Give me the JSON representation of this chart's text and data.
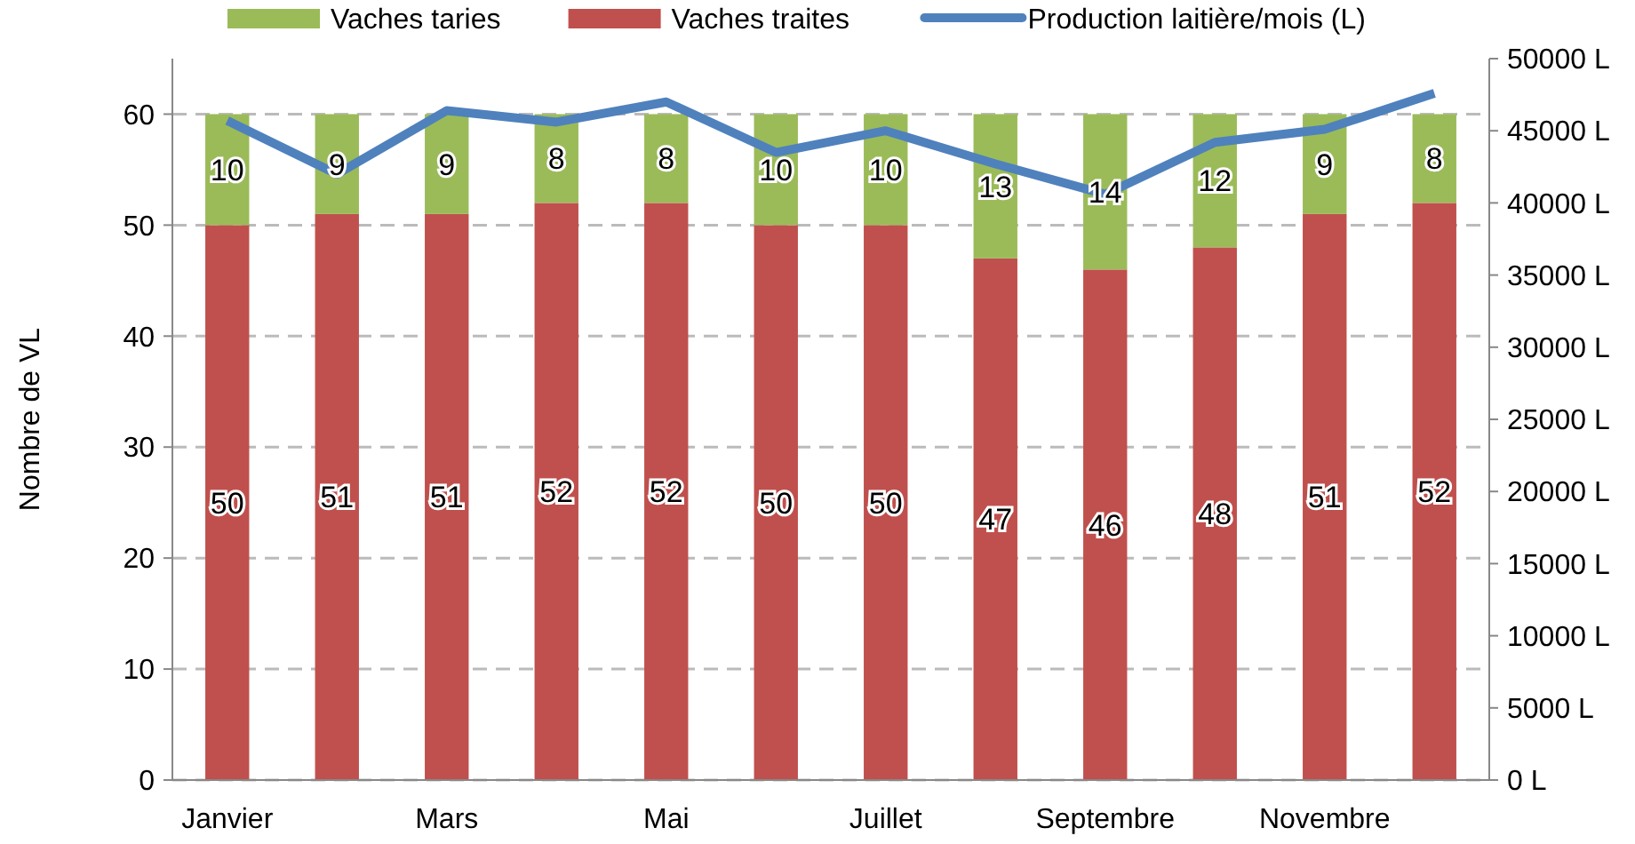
{
  "chart_data": {
    "type": "bar",
    "stacked": true,
    "ylabel": "Nombre de VL",
    "categories": [
      "Janvier",
      null,
      "Mars",
      null,
      "Mai",
      null,
      "Juillet",
      null,
      "Septembre",
      null,
      "Novembre",
      null
    ],
    "series": [
      {
        "name": "Vaches traites",
        "color": "#c0504d",
        "values": [
          50,
          51,
          51,
          52,
          52,
          50,
          50,
          47,
          46,
          48,
          51,
          52
        ],
        "value_labels": [
          "50",
          "51",
          "51",
          "52",
          "52",
          "50",
          "50",
          "47",
          "46",
          "48",
          "51",
          "52"
        ]
      },
      {
        "name": "Vaches taries",
        "color": "#9bbb59",
        "values": [
          10,
          9,
          9,
          8,
          8,
          10,
          10,
          13,
          14,
          12,
          9,
          8
        ],
        "value_labels": [
          "10",
          "9",
          "9",
          "8",
          "8",
          "10",
          "10",
          "13",
          "14",
          "12",
          "9",
          "8"
        ]
      },
      {
        "name": "Production laitière/mois (L)",
        "type": "line",
        "axis": "y2",
        "color": "#4f81bd",
        "values": [
          45700,
          42000,
          46400,
          45600,
          47000,
          43500,
          45000,
          42700,
          40600,
          44200,
          45100,
          47600
        ]
      }
    ],
    "ylim": [
      0,
      65
    ],
    "yticks": [
      0,
      10,
      20,
      30,
      40,
      50,
      60
    ],
    "y2lim": [
      0,
      50000
    ],
    "y2ticks": [
      {
        "value": 0,
        "label": "0 L"
      },
      {
        "value": 5000,
        "label": "5000 L"
      },
      {
        "value": 10000,
        "label": "10000 L"
      },
      {
        "value": 15000,
        "label": "15000 L"
      },
      {
        "value": 20000,
        "label": "20000 L"
      },
      {
        "value": 25000,
        "label": "25000 L"
      },
      {
        "value": 30000,
        "label": "30000 L"
      },
      {
        "value": 35000,
        "label": "35000 L"
      },
      {
        "value": 40000,
        "label": "40000 L"
      },
      {
        "value": 45000,
        "label": "45000 L"
      },
      {
        "value": 50000,
        "label": "50000 L"
      }
    ],
    "grid": "y",
    "legend": "top",
    "marker": "none",
    "line_style": "solid"
  }
}
